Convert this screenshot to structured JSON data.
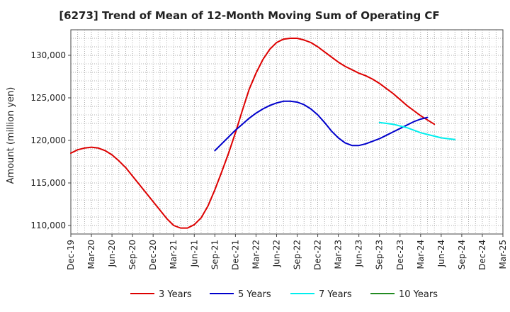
{
  "chart_data": {
    "type": "line",
    "title": "[6273]  Trend of Mean of 12-Month Moving Sum of Operating CF",
    "xlabel": "",
    "ylabel": "Amount (million yen)",
    "ylim": [
      109000,
      133000
    ],
    "yticks": [
      110000,
      115000,
      120000,
      125000,
      130000
    ],
    "ytick_labels": [
      "110,000",
      "115,000",
      "120,000",
      "125,000",
      "130,000"
    ],
    "x_start_month": "2019-12",
    "total_months": 63,
    "xtick_labels": [
      "Dec-19",
      "Mar-20",
      "Jun-20",
      "Sep-20",
      "Dec-20",
      "Mar-21",
      "Jun-21",
      "Sep-21",
      "Dec-21",
      "Mar-22",
      "Jun-22",
      "Sep-22",
      "Dec-22",
      "Mar-23",
      "Jun-23",
      "Sep-23",
      "Dec-23",
      "Mar-24",
      "Jun-24",
      "Sep-24",
      "Dec-24",
      "Mar-25"
    ],
    "grid": true,
    "legend_position": "bottom",
    "series": [
      {
        "name": "3 Years",
        "color": "#dd0000",
        "start_month": 0,
        "values": [
          118500,
          118900,
          119100,
          119200,
          119100,
          118800,
          118300,
          117600,
          116800,
          115800,
          114800,
          113800,
          112800,
          111800,
          110800,
          110000,
          109700,
          109700,
          110100,
          110900,
          112300,
          114200,
          116300,
          118500,
          120900,
          123500,
          126000,
          127900,
          129500,
          130700,
          131500,
          131900,
          132000,
          132000,
          131800,
          131500,
          131000,
          130400,
          129800,
          129200,
          128700,
          128300,
          127900,
          127600,
          127200,
          126700,
          126100,
          125500,
          124800,
          124100,
          123500,
          122900,
          122400,
          121900
        ]
      },
      {
        "name": "5 Years",
        "color": "#0000cc",
        "start_month": 21,
        "values": [
          118800,
          119600,
          120400,
          121200,
          121900,
          122600,
          123200,
          123700,
          124100,
          124400,
          124600,
          124600,
          124500,
          124200,
          123700,
          123000,
          122100,
          121100,
          120300,
          119700,
          119400,
          119400,
          119600,
          119900,
          120200,
          120600,
          121000,
          121400,
          121800,
          122200,
          122500,
          122700
        ]
      },
      {
        "name": "7 Years",
        "color": "#00eeee",
        "start_month": 45,
        "values": [
          122100,
          122000,
          121900,
          121700,
          121500,
          121200,
          120900,
          120700,
          120500,
          120300,
          120200,
          120100
        ]
      },
      {
        "name": "10 Years",
        "color": "#228b22",
        "start_month": 0,
        "values": []
      }
    ]
  }
}
